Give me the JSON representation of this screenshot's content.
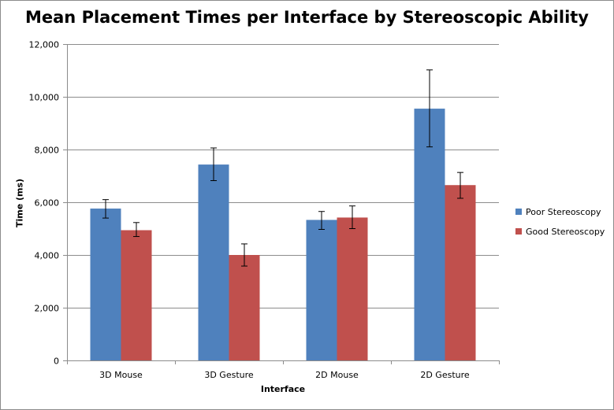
{
  "chart_data": {
    "type": "bar",
    "title": "Mean Placement Times per Interface by Stereoscopic Ability",
    "xlabel": "Interface",
    "ylabel": "Time (ms)",
    "categories": [
      "3D Mouse",
      "3D Gesture",
      "2D Mouse",
      "2D Gesture"
    ],
    "ylim": [
      0,
      12000
    ],
    "yticks": [
      0,
      2000,
      4000,
      6000,
      8000,
      10000,
      12000
    ],
    "ytick_labels": [
      "0",
      "2,000",
      "4,000",
      "6,000",
      "8,000",
      "10,000",
      "12,000"
    ],
    "grid": true,
    "legend_position": "right",
    "series": [
      {
        "name": "Poor Stereoscopy",
        "color": "#4f81bd",
        "values": [
          5760,
          7430,
          5330,
          9550
        ],
        "error_low": [
          5400,
          6820,
          4970,
          8100
        ],
        "error_high": [
          6100,
          8060,
          5650,
          11020
        ]
      },
      {
        "name": "Good Stereoscopy",
        "color": "#c0504d",
        "values": [
          4940,
          4000,
          5420,
          6650
        ],
        "error_low": [
          4700,
          3580,
          5000,
          6150
        ],
        "error_high": [
          5230,
          4420,
          5860,
          7130
        ]
      }
    ]
  }
}
